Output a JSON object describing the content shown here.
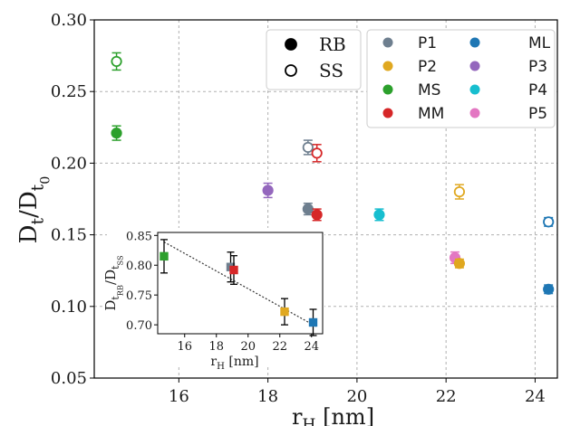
{
  "chart_data": [
    {
      "type": "scatter",
      "xlabel": "r_H [nm]",
      "ylabel": "D_t/D_t0",
      "xlim": [
        14.1,
        24.5
      ],
      "ylim": [
        0.05,
        0.3
      ],
      "xticks": [
        16,
        18,
        20,
        22,
        24
      ],
      "yticks": [
        0.05,
        0.1,
        0.15,
        0.2,
        0.25,
        0.3
      ],
      "ytick_labels": [
        "0.05",
        "0.10",
        "0.15",
        "0.20",
        "0.25",
        "0.30"
      ],
      "grid": true,
      "marker_legend": {
        "placement": "top-center",
        "entries": [
          {
            "label": "RB",
            "fill": "filled"
          },
          {
            "label": "SS",
            "fill": "open"
          }
        ]
      },
      "color_legend": {
        "placement": "top-right",
        "entries": [
          {
            "label": "P1",
            "color": "#6e7f8f"
          },
          {
            "label": "ML",
            "color": "#1f77b4"
          },
          {
            "label": "P2",
            "color": "#e0a820"
          },
          {
            "label": "P3",
            "color": "#9467bd"
          },
          {
            "label": "MS",
            "color": "#2ca02c"
          },
          {
            "label": "P4",
            "color": "#17becf"
          },
          {
            "label": "MM",
            "color": "#d62728"
          },
          {
            "label": "P5",
            "color": "#e377c2"
          }
        ]
      },
      "series": [
        {
          "name": "MS",
          "color": "#2ca02c",
          "points": [
            {
              "x": 14.6,
              "y": 0.271,
              "err": 0.006,
              "fill": "open"
            },
            {
              "x": 14.6,
              "y": 0.221,
              "err": 0.005,
              "fill": "filled"
            }
          ]
        },
        {
          "name": "P3",
          "color": "#9467bd",
          "points": [
            {
              "x": 18.0,
              "y": 0.181,
              "err": 0.005,
              "fill": "filled"
            }
          ]
        },
        {
          "name": "P1",
          "color": "#6e7f8f",
          "points": [
            {
              "x": 18.9,
              "y": 0.211,
              "err": 0.005,
              "fill": "open"
            },
            {
              "x": 18.9,
              "y": 0.168,
              "err": 0.004,
              "fill": "filled"
            }
          ]
        },
        {
          "name": "MM",
          "color": "#d62728",
          "points": [
            {
              "x": 19.1,
              "y": 0.207,
              "err": 0.006,
              "fill": "open"
            },
            {
              "x": 19.1,
              "y": 0.164,
              "err": 0.004,
              "fill": "filled"
            }
          ]
        },
        {
          "name": "P4",
          "color": "#17becf",
          "points": [
            {
              "x": 20.5,
              "y": 0.164,
              "err": 0.004,
              "fill": "filled"
            }
          ]
        },
        {
          "name": "P5",
          "color": "#e377c2",
          "points": [
            {
              "x": 22.2,
              "y": 0.134,
              "err": 0.004,
              "fill": "filled"
            }
          ]
        },
        {
          "name": "P2",
          "color": "#e0a820",
          "points": [
            {
              "x": 22.3,
              "y": 0.18,
              "err": 0.005,
              "fill": "open"
            },
            {
              "x": 22.3,
              "y": 0.13,
              "err": 0.003,
              "fill": "filled"
            }
          ]
        },
        {
          "name": "ML",
          "color": "#1f77b4",
          "points": [
            {
              "x": 24.3,
              "y": 0.159,
              "err": 0.003,
              "fill": "open"
            },
            {
              "x": 24.3,
              "y": 0.112,
              "err": 0.003,
              "fill": "filled"
            }
          ]
        }
      ]
    },
    {
      "type": "scatter",
      "placement": "inset",
      "xlabel": "r_H [nm]",
      "ylabel": "D_tRB/D_tSS",
      "xlim": [
        14.3,
        24.7
      ],
      "ylim": [
        0.685,
        0.855
      ],
      "xticks": [
        16,
        18,
        20,
        22,
        24
      ],
      "yticks": [
        0.7,
        0.75,
        0.8,
        0.85
      ],
      "ytick_labels": [
        "0.70",
        "0.75",
        "0.80",
        "0.85"
      ],
      "grid": false,
      "fit_line": {
        "x": [
          14.7,
          24.3
        ],
        "y": [
          0.839,
          0.697
        ],
        "style": "dotted"
      },
      "points": [
        {
          "name": "MS",
          "x": 14.7,
          "y": 0.815,
          "err": 0.028,
          "color": "#2ca02c"
        },
        {
          "name": "P1",
          "x": 18.9,
          "y": 0.797,
          "err": 0.025,
          "color": "#6e7f8f"
        },
        {
          "name": "MM",
          "x": 19.1,
          "y": 0.792,
          "err": 0.024,
          "color": "#d62728"
        },
        {
          "name": "P2",
          "x": 22.3,
          "y": 0.722,
          "err": 0.022,
          "color": "#e0a820"
        },
        {
          "name": "ML",
          "x": 24.1,
          "y": 0.704,
          "err": 0.022,
          "color": "#1f77b4"
        }
      ]
    }
  ]
}
